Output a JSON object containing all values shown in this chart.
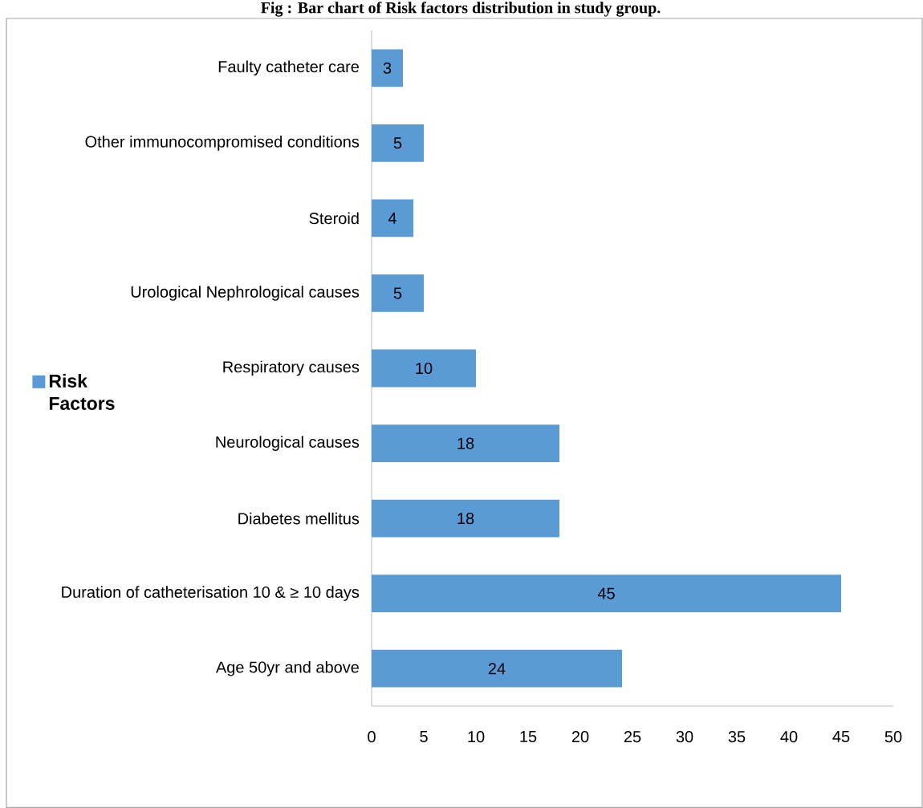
{
  "chart_data": {
    "type": "bar",
    "orientation": "horizontal",
    "title": "Fig : Bar chart of Risk factors distribution in study group.",
    "categories": [
      "Faulty catheter care",
      "Other immunocompromised conditions",
      "Steroid",
      "Urological Nephrological causes",
      "Respiratory causes",
      "Neurological causes",
      "Diabetes mellitus",
      "Duration of catheterisation 10 &  ≥ 10 days",
      "Age 50yr and above"
    ],
    "series": [
      {
        "name": "Risk Factors",
        "color": "#5b9bd5",
        "values": [
          3,
          5,
          4,
          5,
          10,
          18,
          18,
          45,
          24
        ]
      }
    ],
    "xlim": [
      0,
      50
    ],
    "xticks": [
      0,
      5,
      10,
      15,
      20,
      25,
      30,
      35,
      40,
      45,
      50
    ],
    "data_labels": true,
    "legend": "left",
    "grid": false
  }
}
